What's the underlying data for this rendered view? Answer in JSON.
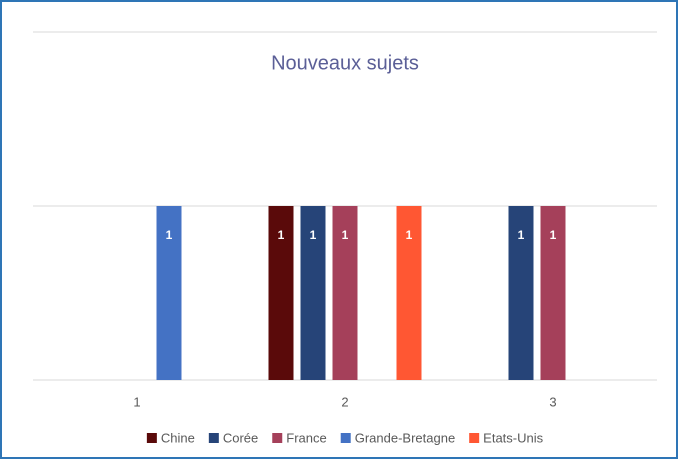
{
  "chart_data": {
    "type": "bar",
    "title": "Nouveaux sujets",
    "categories": [
      "1",
      "2",
      "3"
    ],
    "series": [
      {
        "name": "Chine",
        "color": "#5a0a0a",
        "values": [
          null,
          1,
          null
        ]
      },
      {
        "name": "Corée",
        "color": "#264478",
        "values": [
          null,
          1,
          1
        ]
      },
      {
        "name": "France",
        "color": "#a5405a",
        "values": [
          null,
          1,
          1
        ]
      },
      {
        "name": "Grande-Bretagne",
        "color": "#4472c4",
        "values": [
          1,
          null,
          null
        ]
      },
      {
        "name": "Etats-Unis",
        "color": "#ff5733",
        "values": [
          null,
          1,
          null
        ]
      }
    ],
    "ylim": [
      0,
      2
    ],
    "yticks": [
      0,
      1,
      2
    ],
    "grid": true,
    "legend": "bottom"
  }
}
